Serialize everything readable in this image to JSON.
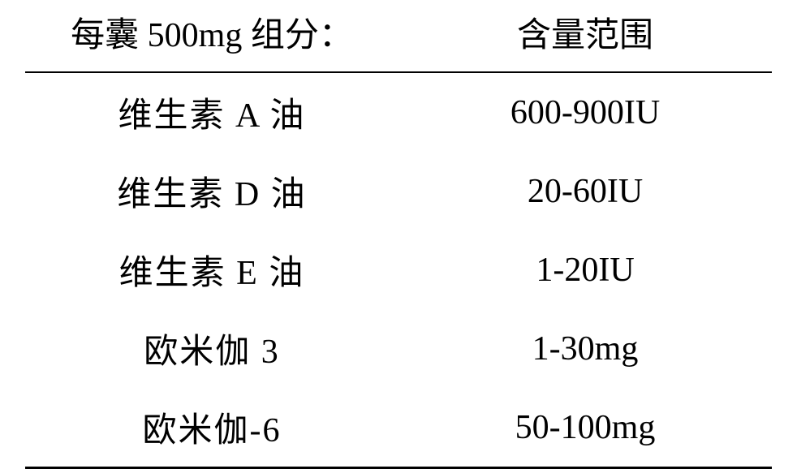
{
  "table": {
    "type": "table",
    "columns": [
      {
        "label": "每囊 500mg 组分：",
        "width": "50%",
        "align": "center"
      },
      {
        "label": "含量范围",
        "width": "50%",
        "align": "center"
      }
    ],
    "rows": [
      [
        "维生素 A 油",
        "600-900IU"
      ],
      [
        "维生素 D 油",
        "20-60IU"
      ],
      [
        "维生素 E 油",
        "1-20IU"
      ],
      [
        "欧米伽 3",
        "1-30mg"
      ],
      [
        "欧米伽-6",
        "50-100mg"
      ]
    ],
    "styles": {
      "background_color": "#ffffff",
      "text_color": "#000000",
      "border_color": "#000000",
      "border_top_width": 3,
      "header_border_bottom_width": 2,
      "border_bottom_width": 3,
      "font_size": 42,
      "cell_padding_y": 18,
      "font_family": "SimSun"
    }
  }
}
